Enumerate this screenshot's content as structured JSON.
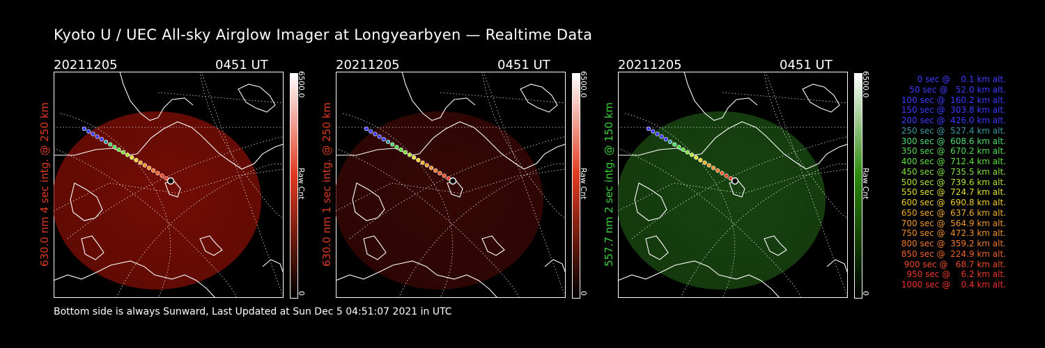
{
  "title": "Kyoto U / UEC All-sky Airglow Imager at Longyearbyen — Realtime Data",
  "footer": "Bottom side is always Sunward, Last Updated at Sun Dec  5 04:51:07 2021 in UTC",
  "panels": [
    {
      "date": "20211205",
      "time": "0451 UT",
      "label": "630.0 nm 4 sec intg. @ 250 km",
      "label_color": "#e03a20",
      "cbar_max": "6500.0",
      "cbar_min": "0",
      "cbar_unit": "Raw Cnt",
      "cbar_color": "#e03a20",
      "image_color": "#8a0f06",
      "image_opacity": 0.82
    },
    {
      "date": "20211205",
      "time": "0451 UT",
      "label": "630.0 nm 1 sec intg. @ 250 km",
      "label_color": "#e03a20",
      "cbar_max": "6500.0",
      "cbar_min": "0",
      "cbar_unit": "Raw Cnt",
      "cbar_color": "#e03a20",
      "image_color": "#3a0805",
      "image_opacity": 0.9
    },
    {
      "date": "20211205",
      "time": "0451 UT",
      "label": "557.7 nm 2 sec intg. @ 150 km",
      "label_color": "#3ad23a",
      "cbar_max": "6500.0",
      "cbar_min": "0",
      "cbar_unit": "Raw Cnt",
      "cbar_color": "#2a8a0a",
      "image_color": "#1a4a12",
      "image_opacity": 0.9
    }
  ],
  "legend": [
    {
      "text": "   0 sec @    0.1 km alt.",
      "color": "#3c3cff"
    },
    {
      "text": "  50 sec @   52.0 km alt.",
      "color": "#3c3cff"
    },
    {
      "text": " 100 sec @  160.2 km alt.",
      "color": "#3c3cff"
    },
    {
      "text": " 150 sec @  303.8 km alt.",
      "color": "#3c3cff"
    },
    {
      "text": " 200 sec @  426.0 km alt.",
      "color": "#3c3cff"
    },
    {
      "text": " 250 sec @  527.4 km alt.",
      "color": "#3a9aa0"
    },
    {
      "text": " 300 sec @  608.6 km alt.",
      "color": "#4fdc70"
    },
    {
      "text": " 350 sec @  670.2 km alt.",
      "color": "#4fdc50"
    },
    {
      "text": " 400 sec @  712.4 km alt.",
      "color": "#5ae23a"
    },
    {
      "text": " 450 sec @  735.5 km alt.",
      "color": "#7ee23a"
    },
    {
      "text": " 500 sec @  739.6 km alt.",
      "color": "#b0e630"
    },
    {
      "text": " 550 sec @  724.7 km alt.",
      "color": "#e0e02a"
    },
    {
      "text": " 600 sec @  690.8 km alt.",
      "color": "#f0d02a"
    },
    {
      "text": " 650 sec @  637.6 km alt.",
      "color": "#f0b02a"
    },
    {
      "text": " 700 sec @  564.9 km alt.",
      "color": "#f09a2a"
    },
    {
      "text": " 750 sec @  472.3 km alt.",
      "color": "#f0902a"
    },
    {
      "text": " 800 sec @  359.2 km alt.",
      "color": "#f07a2a"
    },
    {
      "text": " 850 sec @  224.9 km alt.",
      "color": "#f0642a"
    },
    {
      "text": " 900 sec @   68.7 km alt.",
      "color": "#f04a2a"
    },
    {
      "text": " 950 sec @    6.2 km alt.",
      "color": "#f03a2a"
    },
    {
      "text": "1000 sec @    0.4 km alt.",
      "color": "#f0302a"
    }
  ]
}
